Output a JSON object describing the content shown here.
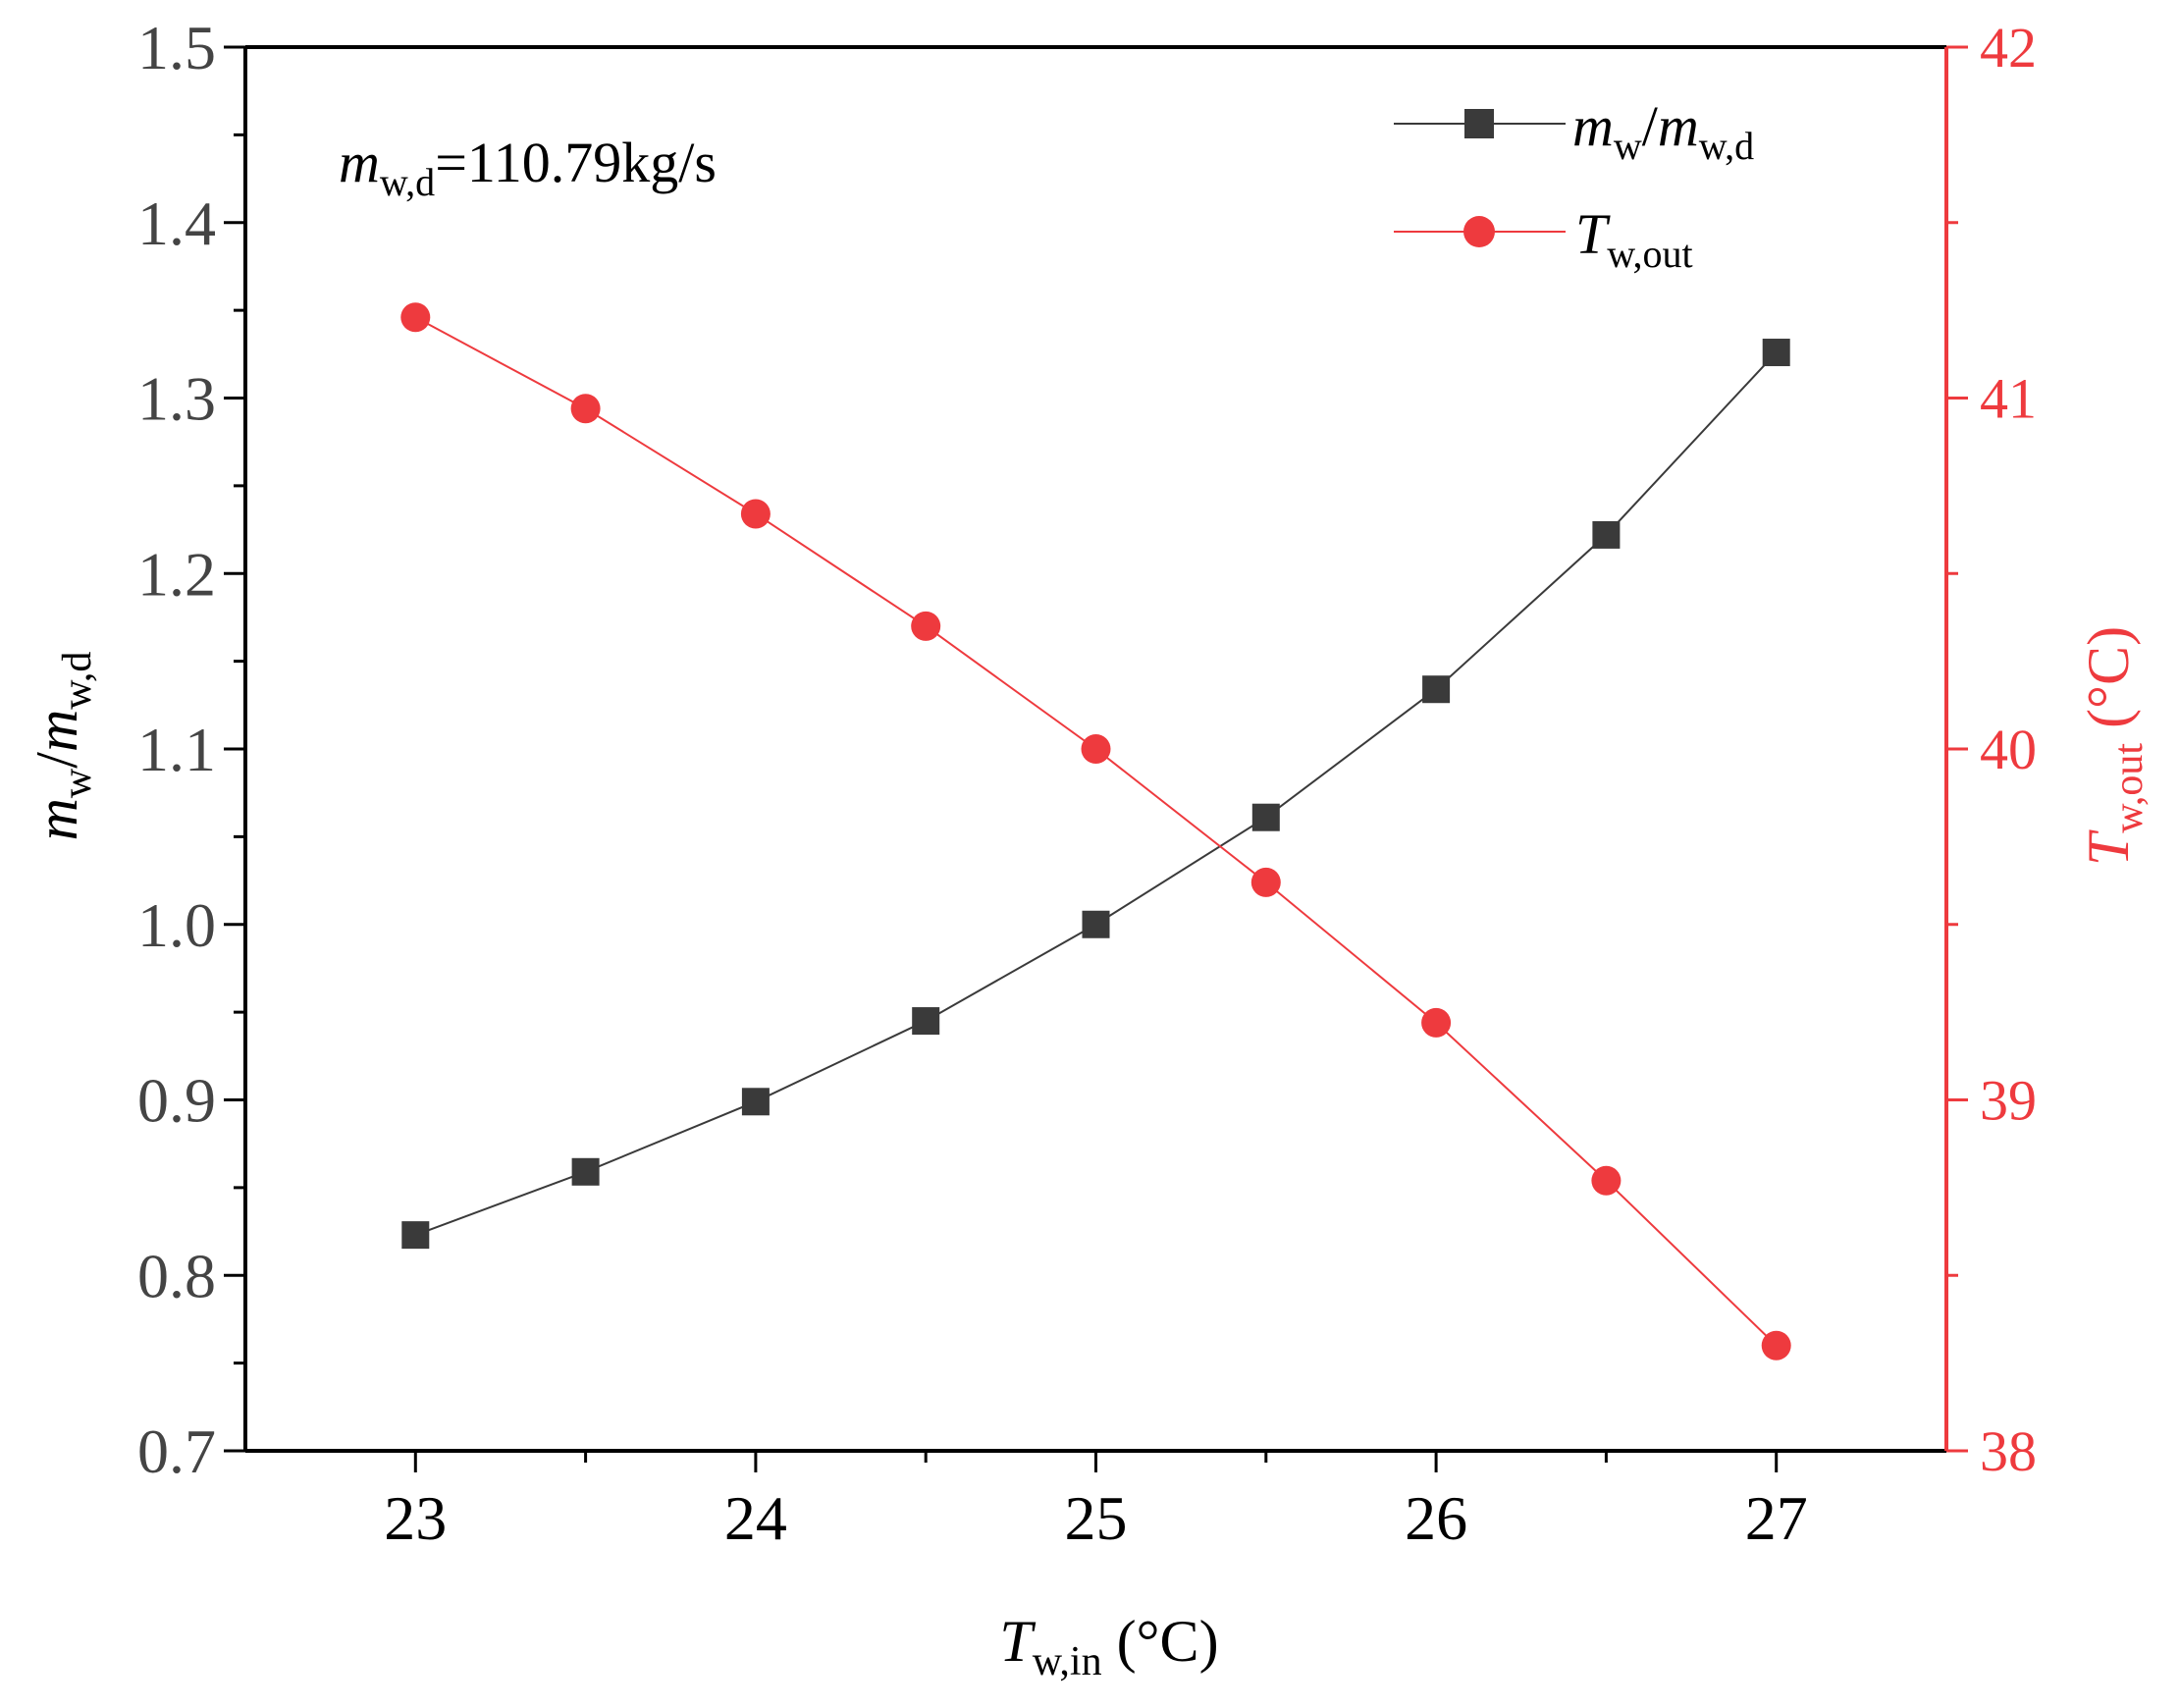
{
  "chart_data": {
    "type": "line",
    "x": [
      23,
      23.5,
      24,
      24.5,
      25,
      25.5,
      26,
      26.5,
      27
    ],
    "xlim": [
      22.5,
      27.5
    ],
    "xticks": [
      "23",
      "24",
      "25",
      "26",
      "27"
    ],
    "xlabel": {
      "main": "T",
      "sub": "w,in",
      "unit": " (°C)"
    },
    "ylim": [
      0.7,
      1.5
    ],
    "yticks": [
      "0.7",
      "0.8",
      "0.9",
      "1.0",
      "1.1",
      "1.2",
      "1.3",
      "1.4",
      "1.5"
    ],
    "ylabel": {
      "m1": "m",
      "s1": "w",
      "slash": "/",
      "m2": "m",
      "s2": "w,d"
    },
    "y2lim": [
      38,
      42
    ],
    "y2ticks": [
      "38",
      "39",
      "40",
      "41",
      "42"
    ],
    "y2label": {
      "main": "T",
      "sub": "w,out",
      "unit": " (°C)"
    },
    "annotation": {
      "m": "m",
      "sub": "w,d",
      "rest": "=110.79kg/s"
    },
    "series": [
      {
        "name": "mw/mw,d",
        "legend": {
          "m1": "m",
          "s1": "w",
          "slash": "/",
          "m2": "m",
          "s2": "w,d"
        },
        "axis": "left",
        "marker": "square",
        "color": "#3a3a3a",
        "values": [
          0.823,
          0.859,
          0.899,
          0.945,
          1.0,
          1.061,
          1.134,
          1.222,
          1.326
        ]
      },
      {
        "name": "Tw,out",
        "legend": {
          "main": "T",
          "sub": "w,out"
        },
        "axis": "right",
        "marker": "circle",
        "color": "#ee3a3e",
        "values": [
          41.23,
          40.97,
          40.67,
          40.35,
          40.0,
          39.62,
          39.22,
          38.77,
          38.3
        ]
      }
    ],
    "colors": {
      "axis": "#000000",
      "right_axis": "#ee3a3e"
    }
  }
}
